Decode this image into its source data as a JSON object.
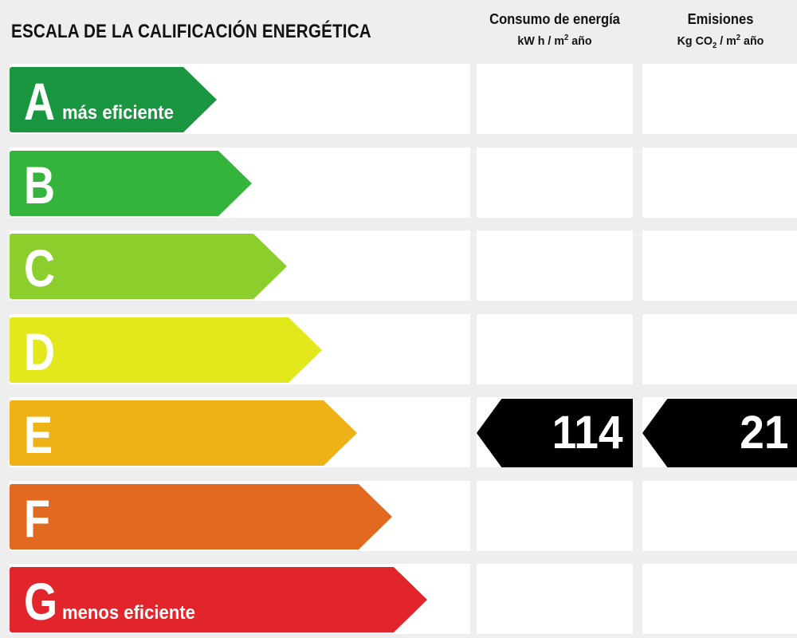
{
  "title": "ESCALA DE LA CALIFICACIÓN ENERGÉTICA",
  "columns": {
    "consumo": {
      "line1": "Consumo de energía",
      "line2_pre": "kW h / m",
      "line2_sup": "2",
      "line2_post": " año"
    },
    "emisiones": {
      "line1": "Emisiones",
      "line2_pre": "Kg CO",
      "line2_sub": "2",
      "line2_mid": " / m",
      "line2_sup": "2",
      "line2_post": " año"
    }
  },
  "classes": [
    {
      "letter": "A",
      "sublabel": "más eficiente",
      "color": "#1a9641"
    },
    {
      "letter": "B",
      "sublabel": "",
      "color": "#34b43c"
    },
    {
      "letter": "C",
      "sublabel": "",
      "color": "#8cce2c"
    },
    {
      "letter": "D",
      "sublabel": "",
      "color": "#e2e81c"
    },
    {
      "letter": "E",
      "sublabel": "",
      "color": "#eeb116"
    },
    {
      "letter": "F",
      "sublabel": "",
      "color": "#e16a20"
    },
    {
      "letter": "G",
      "sublabel": "menos eficiente",
      "color": "#e2252a"
    }
  ],
  "rating": {
    "class": "E",
    "consumo_value": "114",
    "emisiones_value": "21",
    "marker_color": "#000000"
  }
}
